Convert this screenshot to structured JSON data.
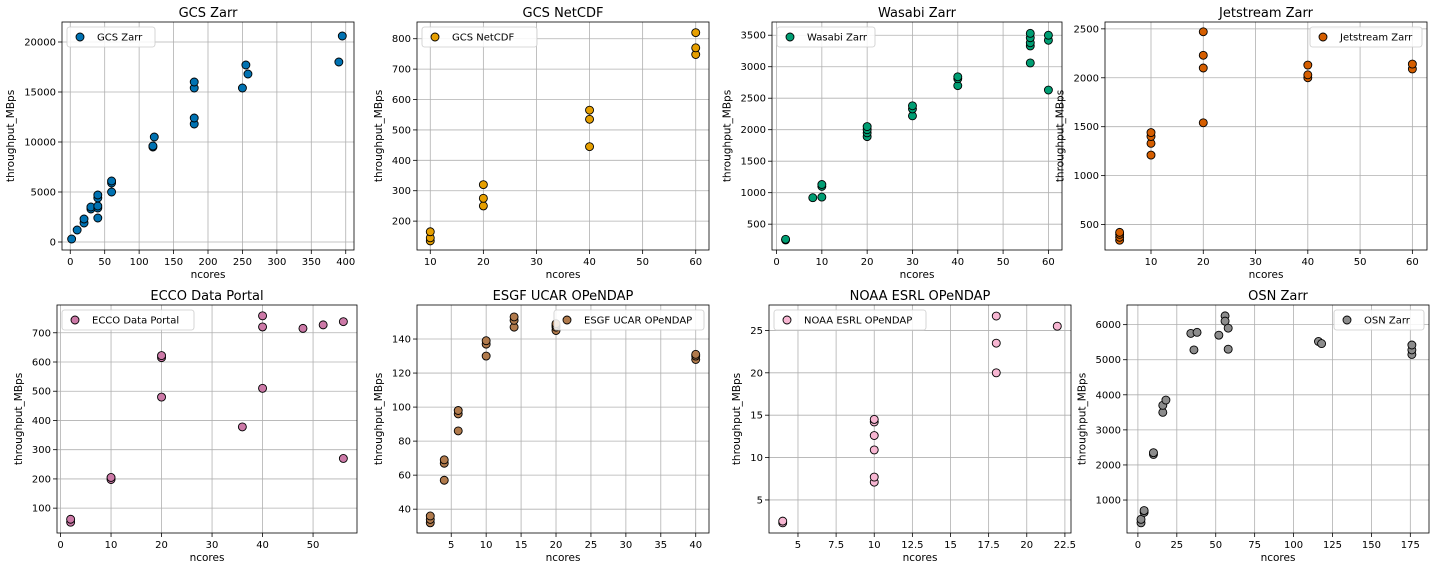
{
  "chart_data": [
    {
      "type": "scatter",
      "title": "GCS Zarr",
      "xlabel": "ncores",
      "ylabel": "throughput_MBps",
      "legend": "upper-left",
      "grid": true,
      "color": "#0072b2",
      "xlim": [
        -12,
        412
      ],
      "ylim": [
        -800,
        22000
      ],
      "xticks": [
        0,
        50,
        100,
        150,
        200,
        250,
        300,
        350,
        400
      ],
      "yticks": [
        0,
        5000,
        10000,
        15000,
        20000
      ],
      "series": [
        {
          "name": "GCS Zarr",
          "x": [
            2,
            10,
            20,
            20,
            30,
            30,
            40,
            40,
            40,
            40,
            40,
            60,
            60,
            60,
            120,
            120,
            122,
            180,
            180,
            180,
            180,
            250,
            255,
            258,
            390,
            395
          ],
          "y": [
            300,
            1200,
            1900,
            2300,
            3300,
            3500,
            2400,
            3400,
            3600,
            4400,
            4700,
            5000,
            5900,
            6100,
            9500,
            9600,
            10500,
            11800,
            12400,
            15400,
            16000,
            15400,
            17700,
            16800,
            18000,
            20600
          ]
        }
      ]
    },
    {
      "type": "scatter",
      "title": "GCS NetCDF",
      "xlabel": "ncores",
      "ylabel": "throughput_MBps",
      "legend": "upper-left",
      "grid": true,
      "color": "#e69f00",
      "xlim": [
        7.5,
        62.5
      ],
      "ylim": [
        105,
        855
      ],
      "xticks": [
        10,
        20,
        30,
        40,
        50,
        60
      ],
      "yticks": [
        200,
        300,
        400,
        500,
        600,
        700,
        800
      ],
      "series": [
        {
          "name": "GCS NetCDF",
          "x": [
            10,
            10,
            10,
            20,
            20,
            20,
            40,
            40,
            40,
            60,
            60,
            60
          ],
          "y": [
            135,
            145,
            165,
            250,
            275,
            320,
            445,
            535,
            565,
            748,
            770,
            820
          ]
        }
      ]
    },
    {
      "type": "scatter",
      "title": "Wasabi Zarr",
      "xlabel": "ncores",
      "ylabel": "throughput_MBps",
      "legend": "upper-left",
      "grid": true,
      "color": "#009e73",
      "xlim": [
        -1,
        63
      ],
      "ylim": [
        90,
        3710
      ],
      "xticks": [
        0,
        10,
        20,
        30,
        40,
        50,
        60
      ],
      "yticks": [
        500,
        1000,
        1500,
        2000,
        2500,
        3000,
        3500
      ],
      "series": [
        {
          "name": "Wasabi Zarr",
          "x": [
            2,
            2,
            8,
            10,
            10,
            10,
            20,
            20,
            20,
            20,
            30,
            30,
            30,
            40,
            40,
            40,
            56,
            56,
            56,
            56,
            56,
            60,
            60,
            60
          ],
          "y": [
            250,
            260,
            920,
            930,
            1100,
            1130,
            1890,
            1950,
            2000,
            2050,
            2220,
            2330,
            2380,
            2700,
            2810,
            2840,
            3060,
            3330,
            3380,
            3460,
            3530,
            2630,
            3420,
            3500
          ]
        }
      ]
    },
    {
      "type": "scatter",
      "title": "Jetstream Zarr",
      "xlabel": "ncores",
      "ylabel": "throughput_MBps",
      "legend": "upper-right",
      "grid": true,
      "color": "#d55e00",
      "xlim": [
        1.2,
        62.8
      ],
      "ylim": [
        240,
        2570
      ],
      "xticks": [
        10,
        20,
        30,
        40,
        50,
        60
      ],
      "yticks": [
        500,
        1000,
        1500,
        2000,
        2500
      ],
      "series": [
        {
          "name": "Jetstream Zarr",
          "x": [
            4,
            4,
            4,
            4,
            10,
            10,
            10,
            10,
            20,
            20,
            20,
            20,
            40,
            40,
            40,
            60,
            60
          ],
          "y": [
            340,
            370,
            400,
            420,
            1210,
            1330,
            1400,
            1440,
            1540,
            2100,
            2230,
            2470,
            2000,
            2030,
            2130,
            2090,
            2140
          ]
        }
      ]
    },
    {
      "type": "scatter",
      "title": "ECCO Data Portal",
      "xlabel": "ncores",
      "ylabel": "throughput_MBps",
      "legend": "upper-left",
      "grid": true,
      "color": "#cc79a7",
      "xlim": [
        -0.7,
        58.7
      ],
      "ylim": [
        15,
        795
      ],
      "xticks": [
        0,
        10,
        20,
        30,
        40,
        50
      ],
      "yticks": [
        100,
        200,
        300,
        400,
        500,
        600,
        700
      ],
      "series": [
        {
          "name": "ECCO Data Portal",
          "x": [
            2,
            2,
            10,
            10,
            20,
            20,
            20,
            36,
            40,
            40,
            40,
            48,
            52,
            56,
            56
          ],
          "y": [
            52,
            62,
            198,
            205,
            480,
            615,
            622,
            378,
            510,
            720,
            758,
            715,
            727,
            738,
            270
          ]
        }
      ]
    },
    {
      "type": "scatter",
      "title": "ESGF UCAR OPeNDAP",
      "xlabel": "ncores",
      "ylabel": "throughput_MBps",
      "legend": "upper-right",
      "grid": true,
      "color": "#b07a4c",
      "xlim": [
        0.1,
        41.9
      ],
      "ylim": [
        26,
        160
      ],
      "xticks": [
        5,
        10,
        15,
        20,
        25,
        30,
        35,
        40
      ],
      "yticks": [
        40,
        60,
        80,
        100,
        120,
        140
      ],
      "series": [
        {
          "name": "ESGF UCAR OPeNDAP",
          "x": [
            2,
            2,
            2,
            4,
            4,
            4,
            6,
            6,
            6,
            10,
            10,
            10,
            14,
            14,
            14,
            20,
            20,
            20,
            20,
            40,
            40,
            40
          ],
          "y": [
            32,
            34,
            36,
            57,
            67,
            69,
            86,
            96,
            98,
            130,
            137,
            139,
            147,
            151,
            153,
            145,
            147,
            148,
            149,
            128,
            130,
            131
          ]
        }
      ]
    },
    {
      "type": "scatter",
      "title": "NOAA ESRL OPeNDAP",
      "xlabel": "ncores",
      "ylabel": "throughput_MBps",
      "legend": "upper-left",
      "grid": true,
      "color": "#f7b6d2",
      "xlim": [
        3.1,
        22.9
      ],
      "ylim": [
        1.1,
        28.0
      ],
      "xticks": [
        5.0,
        7.5,
        10.0,
        12.5,
        15.0,
        17.5,
        20.0,
        22.5
      ],
      "yticks": [
        5,
        10,
        15,
        20,
        25
      ],
      "series": [
        {
          "name": "NOAA ESRL OPeNDAP",
          "x": [
            4,
            4,
            10,
            10,
            10,
            10,
            10,
            10,
            18,
            18,
            18,
            22
          ],
          "y": [
            2.3,
            2.5,
            7.1,
            7.7,
            10.9,
            12.6,
            14.2,
            14.5,
            20.0,
            23.5,
            26.7,
            25.5
          ]
        }
      ]
    },
    {
      "type": "scatter",
      "title": "OSN Zarr",
      "xlabel": "ncores",
      "ylabel": "throughput_MBps",
      "legend": "upper-right",
      "grid": true,
      "color": "#8c8c8c",
      "xlim": [
        -7,
        187
      ],
      "ylim": [
        60,
        6560
      ],
      "xticks": [
        0,
        25,
        50,
        75,
        100,
        125,
        150,
        175
      ],
      "yticks": [
        1000,
        2000,
        3000,
        4000,
        5000,
        6000
      ],
      "series": [
        {
          "name": "OSN Zarr",
          "x": [
            2,
            2,
            4,
            4,
            10,
            10,
            16,
            16,
            18,
            34,
            36,
            38,
            52,
            56,
            56,
            58,
            58,
            116,
            118,
            176,
            176,
            176
          ],
          "y": [
            350,
            450,
            650,
            700,
            2300,
            2350,
            3500,
            3700,
            3850,
            5750,
            5280,
            5780,
            5700,
            6250,
            6100,
            5900,
            5300,
            5520,
            5460,
            5150,
            5280,
            5420
          ]
        }
      ]
    }
  ]
}
